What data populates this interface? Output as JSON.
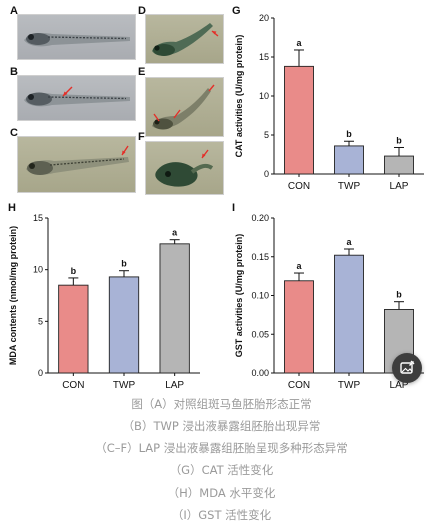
{
  "panels": {
    "photo_letters": [
      "A",
      "B",
      "C",
      "D",
      "E",
      "F"
    ],
    "chart_letters": [
      "G",
      "H",
      "I"
    ]
  },
  "chart_data": [
    {
      "type": "bar",
      "panel": "G",
      "categories": [
        "CON",
        "TWP",
        "LAP"
      ],
      "values": [
        13.8,
        3.6,
        2.3
      ],
      "errors": [
        2.1,
        0.6,
        1.1
      ],
      "significance": [
        "a",
        "b",
        "b"
      ],
      "colors": [
        "#e98b89",
        "#a8b3d6",
        "#b5b5b5"
      ],
      "ylabel": "CAT activities (U/mg protein)",
      "ylim": [
        0,
        20
      ],
      "yticks": [
        0,
        5,
        10,
        15,
        20
      ]
    },
    {
      "type": "bar",
      "panel": "H",
      "categories": [
        "CON",
        "TWP",
        "LAP"
      ],
      "values": [
        8.5,
        9.3,
        12.5
      ],
      "errors": [
        0.7,
        0.6,
        0.4
      ],
      "significance": [
        "b",
        "b",
        "a"
      ],
      "colors": [
        "#e98b89",
        "#a8b3d6",
        "#b5b5b5"
      ],
      "ylabel": "MDA contents (nmol/mg protein)",
      "ylim": [
        0,
        15
      ],
      "yticks": [
        0,
        5,
        10,
        15
      ]
    },
    {
      "type": "bar",
      "panel": "I",
      "categories": [
        "CON",
        "TWP",
        "LAP"
      ],
      "values": [
        0.119,
        0.152,
        0.082
      ],
      "errors": [
        0.01,
        0.008,
        0.01
      ],
      "significance": [
        "a",
        "a",
        "b"
      ],
      "colors": [
        "#e98b89",
        "#a8b3d6",
        "#b5b5b5"
      ],
      "ylabel": "GST activities (U/mg protein)",
      "ylim": [
        0,
        0.2
      ],
      "yticks": [
        "0.00",
        "0.05",
        "0.10",
        "0.15",
        "0.20"
      ]
    }
  ],
  "caption": [
    "图（A）对照组斑马鱼胚胎形态正常",
    "（B）TWP 浸出液暴露组胚胎出现异常",
    "（C–F）LAP 浸出液暴露组胚胎呈现多种形态异常",
    "（G）CAT 活性变化",
    "（H）MDA 水平变化",
    "（I）GST 活性变化"
  ],
  "fab": {
    "icon": "image-edit-icon"
  }
}
